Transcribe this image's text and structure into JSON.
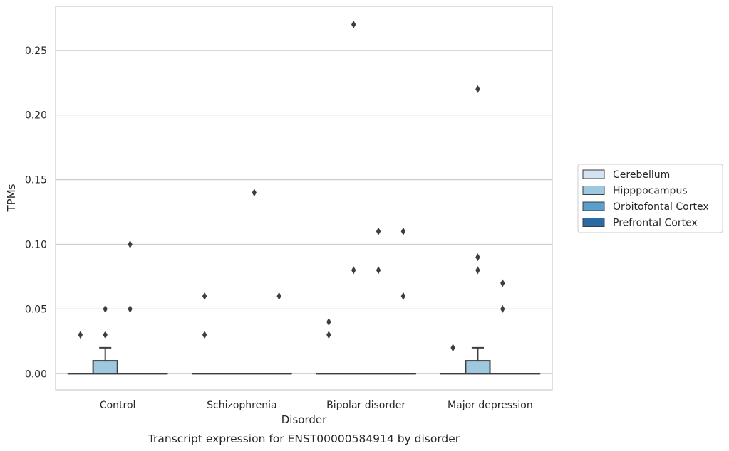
{
  "chart_data": {
    "type": "box",
    "title": "",
    "caption": "Transcript expression for ENST00000584914 by disorder",
    "xlabel": "Disorder",
    "ylabel": "TPMs",
    "categories": [
      "Control",
      "Schizophrenia",
      "Bipolar disorder",
      "Major depression"
    ],
    "ylim": [
      -0.0125,
      0.284
    ],
    "yticks": [
      0.0,
      0.05,
      0.1,
      0.15,
      0.2,
      0.25
    ],
    "ytick_labels": [
      "0.00",
      "0.05",
      "0.10",
      "0.15",
      "0.20",
      "0.25"
    ],
    "grid": true,
    "legend_position": "center-right outside",
    "series": [
      {
        "name": "Cerebellum",
        "color": "#d3e3f1",
        "boxes": [
          {
            "category": "Control",
            "q1": 0,
            "median": 0,
            "q3": 0,
            "whisker_low": 0,
            "whisker_high": 0,
            "outliers": [
              0.03
            ]
          },
          {
            "category": "Schizophrenia",
            "q1": 0,
            "median": 0,
            "q3": 0,
            "whisker_low": 0,
            "whisker_high": 0,
            "outliers": [
              0.03,
              0.06
            ]
          },
          {
            "category": "Bipolar disorder",
            "q1": 0,
            "median": 0,
            "q3": 0,
            "whisker_low": 0,
            "whisker_high": 0,
            "outliers": [
              0.03,
              0.04
            ]
          },
          {
            "category": "Major depression",
            "q1": 0,
            "median": 0,
            "q3": 0,
            "whisker_low": 0,
            "whisker_high": 0,
            "outliers": [
              0.02
            ]
          }
        ]
      },
      {
        "name": "Hipppocampus",
        "color": "#9ec7e0",
        "boxes": [
          {
            "category": "Control",
            "q1": 0,
            "median": 0,
            "q3": 0.01,
            "whisker_low": 0,
            "whisker_high": 0.02,
            "outliers": [
              0.03,
              0.05
            ]
          },
          {
            "category": "Schizophrenia",
            "q1": 0,
            "median": 0,
            "q3": 0,
            "whisker_low": 0,
            "whisker_high": 0,
            "outliers": []
          },
          {
            "category": "Bipolar disorder",
            "q1": 0,
            "median": 0,
            "q3": 0,
            "whisker_low": 0,
            "whisker_high": 0,
            "outliers": [
              0.08,
              0.27
            ]
          },
          {
            "category": "Major depression",
            "q1": 0,
            "median": 0,
            "q3": 0.01,
            "whisker_low": 0,
            "whisker_high": 0.02,
            "outliers": [
              0.08,
              0.09,
              0.22
            ]
          }
        ]
      },
      {
        "name": "Orbitofontal Cortex",
        "color": "#5b9fcd",
        "boxes": [
          {
            "category": "Control",
            "q1": 0,
            "median": 0,
            "q3": 0,
            "whisker_low": 0,
            "whisker_high": 0,
            "outliers": [
              0.05,
              0.1
            ]
          },
          {
            "category": "Schizophrenia",
            "q1": 0,
            "median": 0,
            "q3": 0,
            "whisker_low": 0,
            "whisker_high": 0,
            "outliers": [
              0.14
            ]
          },
          {
            "category": "Bipolar disorder",
            "q1": 0,
            "median": 0,
            "q3": 0,
            "whisker_low": 0,
            "whisker_high": 0,
            "outliers": [
              0.08,
              0.11
            ]
          },
          {
            "category": "Major depression",
            "q1": 0,
            "median": 0,
            "q3": 0,
            "whisker_low": 0,
            "whisker_high": 0,
            "outliers": [
              0.05,
              0.07
            ]
          }
        ]
      },
      {
        "name": "Prefrontal Cortex",
        "color": "#2c6aa6",
        "boxes": [
          {
            "category": "Control",
            "q1": 0,
            "median": 0,
            "q3": 0,
            "whisker_low": 0,
            "whisker_high": 0,
            "outliers": []
          },
          {
            "category": "Schizophrenia",
            "q1": 0,
            "median": 0,
            "q3": 0,
            "whisker_low": 0,
            "whisker_high": 0,
            "outliers": [
              0.06
            ]
          },
          {
            "category": "Bipolar disorder",
            "q1": 0,
            "median": 0,
            "q3": 0,
            "whisker_low": 0,
            "whisker_high": 0,
            "outliers": [
              0.06,
              0.11
            ]
          },
          {
            "category": "Major depression",
            "q1": 0,
            "median": 0,
            "q3": 0,
            "whisker_low": 0,
            "whisker_high": 0,
            "outliers": []
          }
        ]
      }
    ]
  }
}
